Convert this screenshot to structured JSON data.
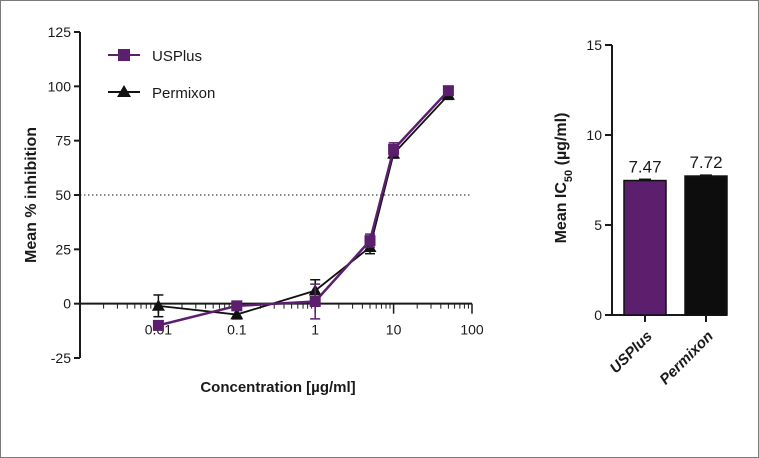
{
  "chart_data": [
    {
      "type": "line",
      "xlabel": "Concentration [µg/ml]",
      "ylabel": "Mean % inhibition",
      "xscale": "log",
      "xlim": [
        0.001,
        100
      ],
      "ylim": [
        -25,
        125
      ],
      "x_ticks": [
        {
          "value": 0.01,
          "label": "0.01"
        },
        {
          "value": 0.1,
          "label": "0.1"
        },
        {
          "value": 1,
          "label": "1"
        },
        {
          "value": 10,
          "label": "10"
        },
        {
          "value": 100,
          "label": "100"
        }
      ],
      "y_ticks": [
        {
          "value": -25,
          "label": "-25"
        },
        {
          "value": 0,
          "label": "0"
        },
        {
          "value": 25,
          "label": "25"
        },
        {
          "value": 50,
          "label": "50"
        },
        {
          "value": 75,
          "label": "75"
        },
        {
          "value": 100,
          "label": "100"
        },
        {
          "value": 125,
          "label": "125"
        }
      ],
      "reference_line": {
        "y": 50,
        "style": "dotted"
      },
      "legend_position": "top-left",
      "series": [
        {
          "name": "USPlus",
          "color": "#5b1f6e",
          "marker": "square",
          "points": [
            {
              "x": 0.01,
              "y": -10,
              "err": 2
            },
            {
              "x": 0.1,
              "y": -1,
              "err": 2
            },
            {
              "x": 1,
              "y": 1,
              "err": 8
            },
            {
              "x": 5,
              "y": 29,
              "err": 3
            },
            {
              "x": 10,
              "y": 71,
              "err": 3
            },
            {
              "x": 50,
              "y": 98,
              "err": 2
            }
          ]
        },
        {
          "name": "Permixon",
          "color": "#111111",
          "marker": "triangle",
          "points": [
            {
              "x": 0.01,
              "y": -1,
              "err": 5
            },
            {
              "x": 0.1,
              "y": -5,
              "err": 2
            },
            {
              "x": 1,
              "y": 6,
              "err": 5
            },
            {
              "x": 5,
              "y": 26,
              "err": 3
            },
            {
              "x": 10,
              "y": 69,
              "err": 2
            },
            {
              "x": 50,
              "y": 96,
              "err": 2
            }
          ]
        }
      ]
    },
    {
      "type": "bar",
      "ylabel_main": "Mean IC",
      "ylabel_sub": "50",
      "ylabel_unit": " (µg/ml)",
      "ylim": [
        0,
        15
      ],
      "y_ticks": [
        {
          "value": 0,
          "label": "0"
        },
        {
          "value": 5,
          "label": "5"
        },
        {
          "value": 10,
          "label": "10"
        },
        {
          "value": 15,
          "label": "15"
        }
      ],
      "categories": [
        "USPlus",
        "Permixon"
      ],
      "values": [
        7.47,
        7.72
      ],
      "errors": [
        0.07,
        0.05
      ],
      "value_labels": [
        "7.47",
        "7.72"
      ],
      "colors": [
        "#5b1f6e",
        "#0d0d0d"
      ]
    }
  ]
}
